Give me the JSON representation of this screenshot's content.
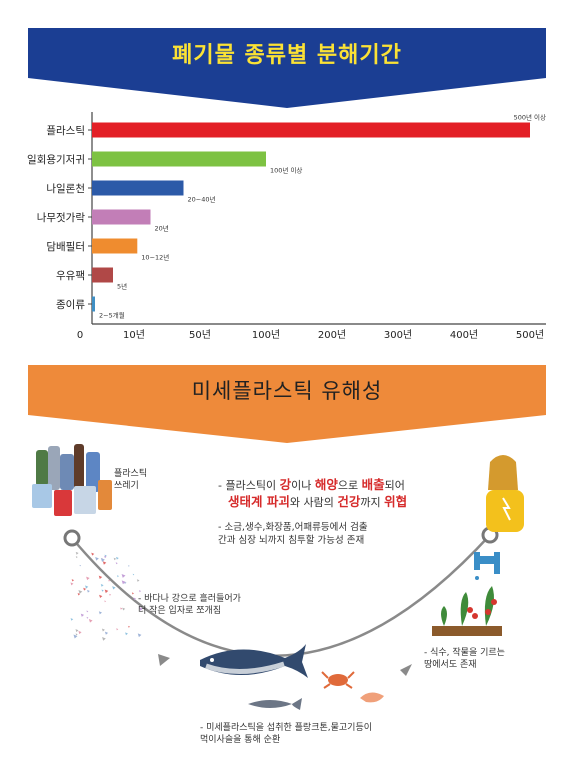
{
  "section1": {
    "title": "폐기물 종류별 분해기간"
  },
  "chart_data": {
    "type": "bar",
    "orientation": "horizontal",
    "categories": [
      "플라스틱",
      "일회용기저귀",
      "나일론천",
      "나무젓가락",
      "담배필터",
      "우유팩",
      "종이류"
    ],
    "values": [
      500,
      100,
      40,
      20,
      12,
      5,
      0.5
    ],
    "data_labels": [
      "500년 이상",
      "100년 이상",
      "20~40년",
      "20년",
      "10~12년",
      "5년",
      "2~5개월"
    ],
    "colors": [
      "#e31f26",
      "#7dc242",
      "#2c5aa8",
      "#c27eb7",
      "#ef8c2f",
      "#b04847",
      "#3f8fc4"
    ],
    "x_tick_labels": [
      "0",
      "10년",
      "50년",
      "100년",
      "200년",
      "300년",
      "400년",
      "500년"
    ],
    "x_tick_values": [
      0,
      10,
      50,
      100,
      200,
      300,
      400,
      500
    ],
    "xlim": [
      0,
      500
    ],
    "scale": "piecewise",
    "grid": false
  },
  "section2": {
    "title": "미세플라스틱 유해성",
    "items": {
      "waste_label_1": "플라스틱",
      "waste_label_2": "쓰레기",
      "text1_prefix": "- 플라스틱이 ",
      "text1_hl1": "강",
      "text1_mid1": "이나 ",
      "text1_hl2": "해양",
      "text1_mid2": "으로 ",
      "text1_hl3": "배출",
      "text1_suffix": "되어",
      "text2_hl1": "생태계 파괴",
      "text2_mid1": "와 사람의 ",
      "text2_hl2": "건강",
      "text2_mid2": "까지 ",
      "text2_hl3": "위협",
      "text3_line1": "- 소금,생수,화장품,어패류등에서 검출",
      "text3_line2": "간과 심장 뇌까지 침투할 가능성 존재",
      "text4_line1": "- 바다나 강으로 흘러들어가",
      "text4_line2": "더 작은 입자로 쪼개짐",
      "text5_line1": "- 식수, 작물을 기르는",
      "text5_line2": "땅에서도 존재",
      "text6_line1": "- 미세플라스틱을 섭취한 플랑크톤,물고기등이",
      "text6_line2": "먹이사슬을 통해 순환"
    }
  }
}
